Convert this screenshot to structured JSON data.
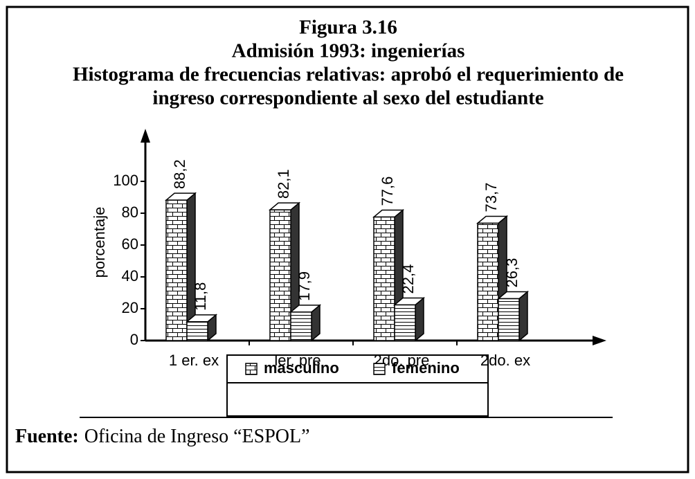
{
  "chart_data": {
    "type": "bar3d",
    "title": "Figura 3.16",
    "subtitle": [
      "Admisión 1993: ingenierías",
      "Histograma de frecuencias relativas: aprobó el requerimiento de",
      "ingreso correspondiente al sexo del estudiante"
    ],
    "ylabel": "porcentaje",
    "categories": [
      "1 er. ex",
      "ler. pre",
      "2do. pre",
      "2do. ex"
    ],
    "series": [
      {
        "name": "masculino",
        "color": "#000000",
        "values": [
          88.2,
          82.1,
          77.6,
          73.7
        ],
        "value_labels": [
          "88,2",
          "82,1",
          "77,6",
          "73,7"
        ]
      },
      {
        "name": "femenino",
        "color": "#000000",
        "values": [
          11.8,
          17.9,
          22.4,
          26.3
        ],
        "value_labels": [
          "11,8",
          "17,9",
          "22,4",
          "26,3"
        ]
      }
    ],
    "ylim": [
      0,
      100
    ],
    "yticks": [
      0,
      20,
      40,
      60,
      80,
      100
    ],
    "source_label": "Fuente:",
    "source": "Oficina de Ingreso “ESPOL”"
  }
}
